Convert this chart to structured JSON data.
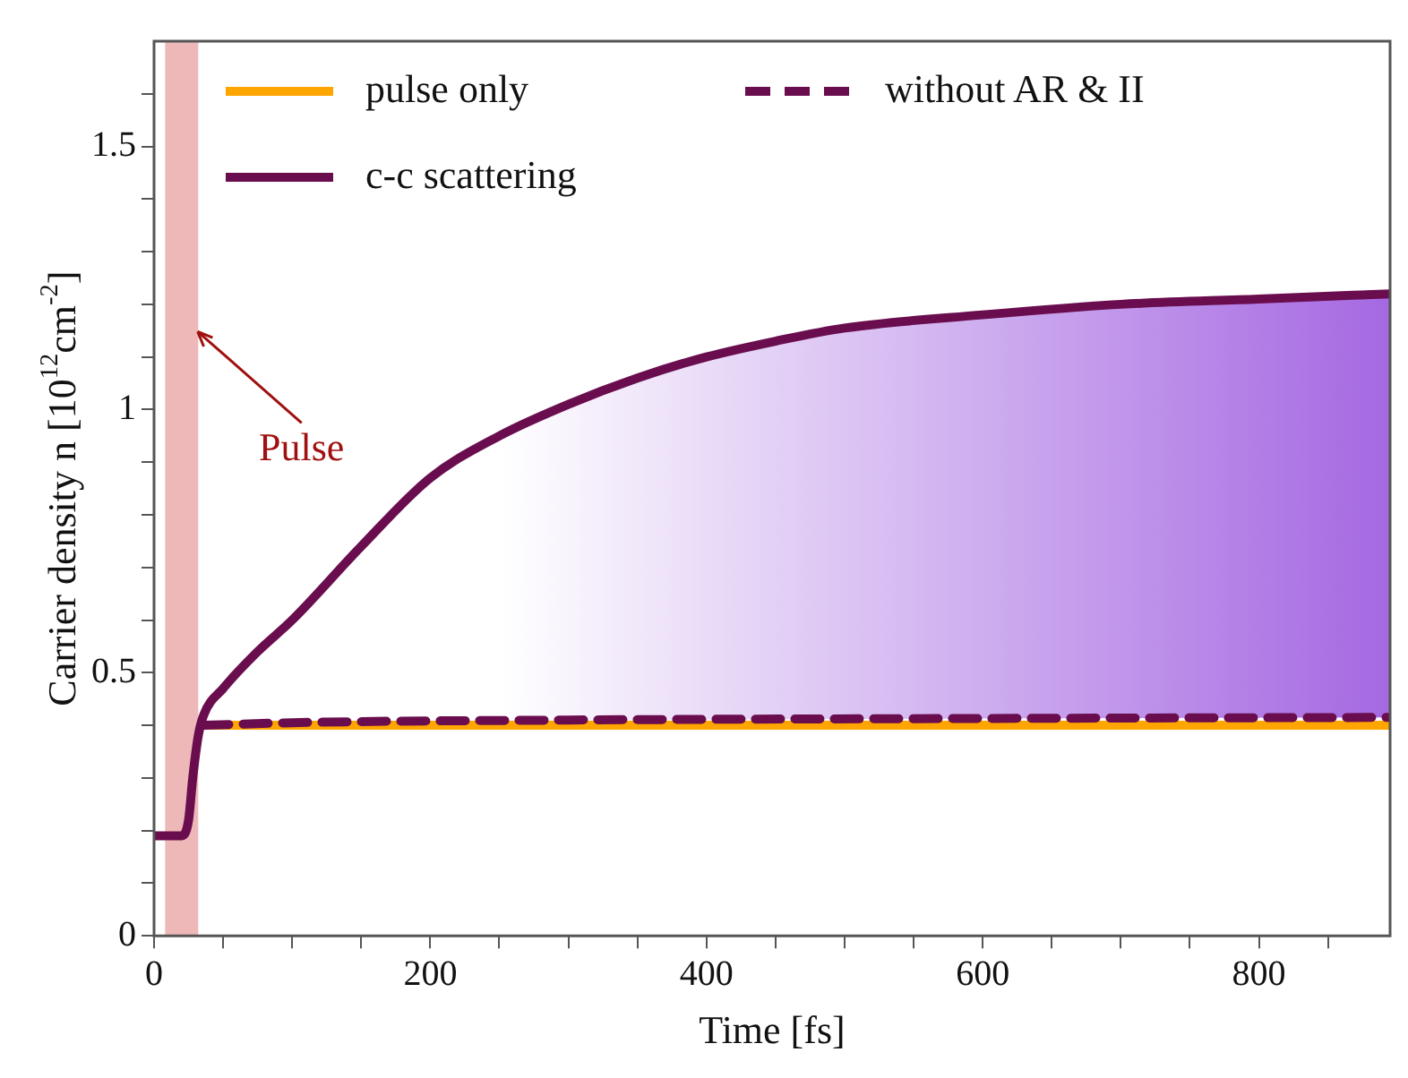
{
  "chart_data": {
    "type": "line",
    "xlabel": "Time [fs]",
    "ylabel": "Carrier density n [10$^{12}$cm$^{-2}$]",
    "xlim": [
      0,
      895
    ],
    "ylim": [
      0,
      1.7
    ],
    "xticks": [
      0,
      {
        "value": 50,
        "label": null
      },
      200,
      {
        "value": 100,
        "label": null
      },
      {
        "value": 150,
        "label": null
      },
      {
        "value": 250,
        "label": null
      },
      {
        "value": 300,
        "label": null
      },
      {
        "value": 350,
        "label": null
      },
      400,
      {
        "value": 450,
        "label": null
      },
      {
        "value": 500,
        "label": null
      },
      {
        "value": 550,
        "label": null
      },
      600,
      {
        "value": 650,
        "label": null
      },
      {
        "value": 700,
        "label": null
      },
      {
        "value": 750,
        "label": null
      },
      800,
      {
        "value": 850,
        "label": null
      }
    ],
    "yticks": [
      0,
      {
        "value": 0.1,
        "label": null
      },
      {
        "value": 0.2,
        "label": null
      },
      {
        "value": 0.3,
        "label": null
      },
      {
        "value": 0.4,
        "label": null
      },
      0.5,
      {
        "value": 0.6,
        "label": null
      },
      {
        "value": 0.7,
        "label": null
      },
      {
        "value": 0.8,
        "label": null
      },
      {
        "value": 0.9,
        "label": null
      },
      1,
      {
        "value": 1.1,
        "label": null
      },
      {
        "value": 1.2,
        "label": null
      },
      {
        "value": 1.3,
        "label": null
      },
      {
        "value": 1.4,
        "label": null
      },
      1.5,
      {
        "value": 1.6,
        "label": null
      }
    ],
    "grid": false,
    "legend": "top left",
    "series": [
      {
        "name": "pulse only",
        "color": "#ffa500",
        "x": [
          36,
          895
        ],
        "values": [
          0.4,
          0.4
        ]
      },
      {
        "name": "c-c scattering",
        "color": "#6a0d4f",
        "x": [
          0,
          20,
          25,
          28,
          32,
          36,
          50,
          75,
          100,
          150,
          200,
          250,
          300,
          350,
          400,
          450,
          500,
          600,
          700,
          800,
          895
        ],
        "values": [
          0.19,
          0.19,
          0.22,
          0.3,
          0.38,
          0.42,
          0.47,
          0.54,
          0.6,
          0.74,
          0.87,
          0.95,
          1.01,
          1.06,
          1.1,
          1.13,
          1.155,
          1.18,
          1.2,
          1.21,
          1.22
        ]
      },
      {
        "name": "without AR & II",
        "color": "#6a0d4f",
        "line_style": "dashed",
        "x": [
          36,
          100,
          300,
          600,
          895
        ],
        "values": [
          0.4,
          0.405,
          0.41,
          0.413,
          0.415
        ]
      }
    ],
    "bands": [
      {
        "axis": "x",
        "from": 8,
        "to": 32,
        "color": "#e89a9a"
      }
    ],
    "annotations": [
      {
        "text": "Pulse",
        "x": 29,
        "y": 1.155
      }
    ]
  }
}
